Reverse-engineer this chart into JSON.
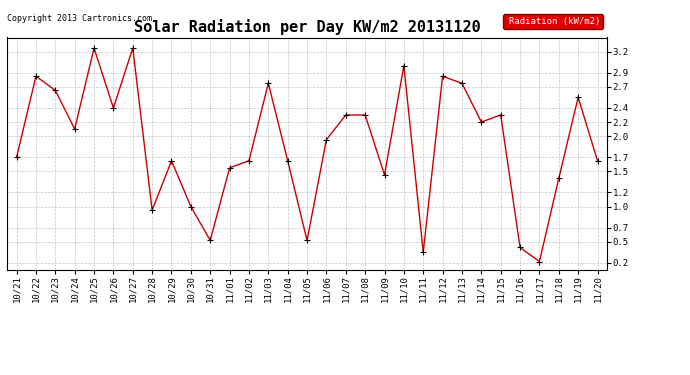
{
  "title": "Solar Radiation per Day KW/m2 20131120",
  "copyright_text": "Copyright 2013 Cartronics.com",
  "legend_label": "Radiation (kW/m2)",
  "dates": [
    "10/21",
    "10/22",
    "10/23",
    "10/24",
    "10/25",
    "10/26",
    "10/27",
    "10/28",
    "10/29",
    "10/30",
    "10/31",
    "11/01",
    "11/02",
    "11/03",
    "11/04",
    "11/05",
    "11/06",
    "11/07",
    "11/08",
    "11/09",
    "11/10",
    "11/11",
    "11/12",
    "11/13",
    "11/14",
    "11/15",
    "11/16",
    "11/17",
    "11/18",
    "11/19",
    "11/20"
  ],
  "values": [
    1.7,
    2.85,
    2.65,
    2.1,
    3.25,
    2.4,
    3.25,
    0.95,
    1.65,
    1.0,
    0.52,
    1.55,
    1.65,
    2.75,
    1.65,
    0.52,
    1.95,
    2.3,
    2.3,
    1.45,
    3.0,
    0.35,
    2.85,
    2.75,
    2.2,
    2.3,
    0.42,
    0.22,
    1.4,
    2.55,
    1.65
  ],
  "line_color": "#cc0000",
  "marker_color": "#000000",
  "grid_color": "#aaaaaa",
  "bg_color": "#ffffff",
  "plot_bg_color": "#ffffff",
  "legend_bg_color": "#dd0000",
  "legend_text_color": "#ffffff",
  "title_fontsize": 11,
  "tick_fontsize": 6.5,
  "copyright_fontsize": 6,
  "ylim": [
    0.1,
    3.4
  ],
  "yticks": [
    0.2,
    0.5,
    0.7,
    1.0,
    1.2,
    1.5,
    1.7,
    2.0,
    2.2,
    2.4,
    2.7,
    2.9,
    3.2
  ]
}
